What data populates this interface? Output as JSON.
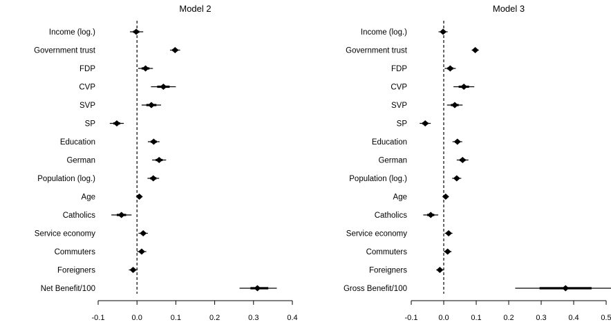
{
  "chart_data": [
    {
      "type": "coefficient-plot",
      "title": "Model 2",
      "xlim": [
        -0.1,
        0.4
      ],
      "xticks": [
        "-0.1",
        "0.0",
        "0.1",
        "0.2",
        "0.3",
        "0.4"
      ],
      "tick_values": [
        -0.1,
        0.0,
        0.1,
        0.2,
        0.3,
        0.4
      ],
      "reference_line": 0,
      "variables": [
        {
          "label": "Income (log.)",
          "estimate": -0.002,
          "ci_inner": [
            -0.01,
            0.006
          ],
          "ci_outer": [
            -0.018,
            0.016
          ]
        },
        {
          "label": "Government trust",
          "estimate": 0.098,
          "ci_inner": [
            0.091,
            0.105
          ],
          "ci_outer": [
            0.085,
            0.111
          ]
        },
        {
          "label": "FDP",
          "estimate": 0.022,
          "ci_inner": [
            0.012,
            0.032
          ],
          "ci_outer": [
            0.003,
            0.041
          ]
        },
        {
          "label": "CVP",
          "estimate": 0.068,
          "ci_inner": [
            0.052,
            0.084
          ],
          "ci_outer": [
            0.036,
            0.1
          ]
        },
        {
          "label": "SVP",
          "estimate": 0.037,
          "ci_inner": [
            0.024,
            0.05
          ],
          "ci_outer": [
            0.012,
            0.062
          ]
        },
        {
          "label": "SP",
          "estimate": -0.052,
          "ci_inner": [
            -0.061,
            -0.043
          ],
          "ci_outer": [
            -0.07,
            -0.034
          ]
        },
        {
          "label": "Education",
          "estimate": 0.043,
          "ci_inner": [
            0.035,
            0.051
          ],
          "ci_outer": [
            0.028,
            0.058
          ]
        },
        {
          "label": "German",
          "estimate": 0.057,
          "ci_inner": [
            0.048,
            0.066
          ],
          "ci_outer": [
            0.039,
            0.075
          ]
        },
        {
          "label": "Population (log.)",
          "estimate": 0.042,
          "ci_inner": [
            0.034,
            0.05
          ],
          "ci_outer": [
            0.027,
            0.057
          ]
        },
        {
          "label": "Age",
          "estimate": 0.006,
          "ci_inner": [
            0.002,
            0.01
          ],
          "ci_outer": [
            -0.002,
            0.014
          ]
        },
        {
          "label": "Catholics",
          "estimate": -0.04,
          "ci_inner": [
            -0.052,
            -0.028
          ],
          "ci_outer": [
            -0.066,
            -0.014
          ]
        },
        {
          "label": "Service economy",
          "estimate": 0.016,
          "ci_inner": [
            0.01,
            0.022
          ],
          "ci_outer": [
            0.004,
            0.028
          ]
        },
        {
          "label": "Commuters",
          "estimate": 0.012,
          "ci_inner": [
            0.006,
            0.018
          ],
          "ci_outer": [
            0.0,
            0.024
          ]
        },
        {
          "label": "Foreigners",
          "estimate": -0.01,
          "ci_inner": [
            -0.015,
            -0.005
          ],
          "ci_outer": [
            -0.021,
            0.001
          ]
        },
        {
          "label": "Net Benefit/100",
          "estimate": 0.31,
          "ci_inner": [
            0.292,
            0.338
          ],
          "ci_outer": [
            0.264,
            0.36
          ]
        }
      ]
    },
    {
      "type": "coefficient-plot",
      "title": "Model 3",
      "xlim": [
        -0.1,
        0.5
      ],
      "xticks": [
        "-0.1",
        "0.0",
        "0.1",
        "0.2",
        "0.3",
        "0.4",
        "0.5"
      ],
      "tick_values": [
        -0.1,
        0.0,
        0.1,
        0.2,
        0.3,
        0.4,
        0.5
      ],
      "reference_line": 0,
      "variables": [
        {
          "label": "Income (log.)",
          "estimate": -0.002,
          "ci_inner": [
            -0.009,
            0.005
          ],
          "ci_outer": [
            -0.016,
            0.012
          ]
        },
        {
          "label": "Government trust",
          "estimate": 0.097,
          "ci_inner": [
            0.091,
            0.103
          ],
          "ci_outer": [
            0.086,
            0.108
          ]
        },
        {
          "label": "FDP",
          "estimate": 0.02,
          "ci_inner": [
            0.011,
            0.029
          ],
          "ci_outer": [
            0.003,
            0.037
          ]
        },
        {
          "label": "CVP",
          "estimate": 0.062,
          "ci_inner": [
            0.046,
            0.078
          ],
          "ci_outer": [
            0.03,
            0.094
          ]
        },
        {
          "label": "SVP",
          "estimate": 0.034,
          "ci_inner": [
            0.022,
            0.046
          ],
          "ci_outer": [
            0.01,
            0.058
          ]
        },
        {
          "label": "SP",
          "estimate": -0.057,
          "ci_inner": [
            -0.066,
            -0.048
          ],
          "ci_outer": [
            -0.074,
            -0.04
          ]
        },
        {
          "label": "Education",
          "estimate": 0.042,
          "ci_inner": [
            0.034,
            0.05
          ],
          "ci_outer": [
            0.027,
            0.057
          ]
        },
        {
          "label": "German",
          "estimate": 0.058,
          "ci_inner": [
            0.049,
            0.067
          ],
          "ci_outer": [
            0.04,
            0.076
          ]
        },
        {
          "label": "Population (log.)",
          "estimate": 0.04,
          "ci_inner": [
            0.033,
            0.047
          ],
          "ci_outer": [
            0.026,
            0.054
          ]
        },
        {
          "label": "Age",
          "estimate": 0.006,
          "ci_inner": [
            0.002,
            0.01
          ],
          "ci_outer": [
            -0.002,
            0.014
          ]
        },
        {
          "label": "Catholics",
          "estimate": -0.04,
          "ci_inner": [
            -0.051,
            -0.029
          ],
          "ci_outer": [
            -0.063,
            -0.017
          ]
        },
        {
          "label": "Service economy",
          "estimate": 0.015,
          "ci_inner": [
            0.009,
            0.021
          ],
          "ci_outer": [
            0.003,
            0.027
          ]
        },
        {
          "label": "Commuters",
          "estimate": 0.012,
          "ci_inner": [
            0.006,
            0.018
          ],
          "ci_outer": [
            0.0,
            0.024
          ]
        },
        {
          "label": "Foreigners",
          "estimate": -0.012,
          "ci_inner": [
            -0.017,
            -0.007
          ],
          "ci_outer": [
            -0.023,
            -0.001
          ]
        },
        {
          "label": "Gross Benefit/100",
          "estimate": 0.375,
          "ci_inner": [
            0.295,
            0.455
          ],
          "ci_outer": [
            0.22,
            0.525
          ]
        }
      ]
    }
  ]
}
